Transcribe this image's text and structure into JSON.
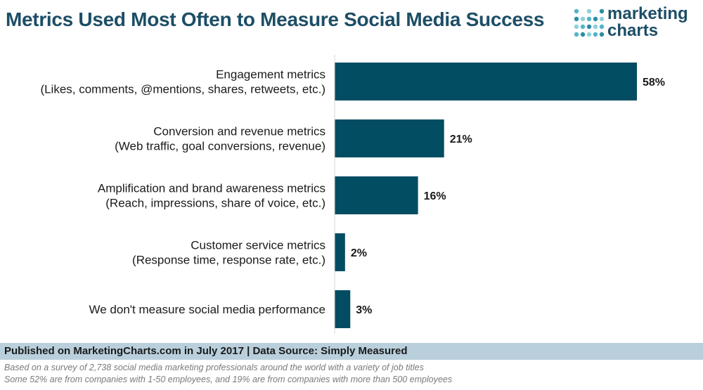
{
  "header": {
    "title": "Metrics Used Most Often to Measure Social Media Success",
    "logo_line1": "marketing",
    "logo_line2": "charts"
  },
  "colors": {
    "bar": "#034d63",
    "title": "#1d4e66",
    "footer_bg": "#b9cfdc",
    "logo_dots": [
      "#52b5c7",
      "#2b8ca5",
      "#8fd0dc"
    ]
  },
  "chart_data": {
    "type": "bar",
    "orientation": "horizontal",
    "title": "Metrics Used Most Often to Measure Social Media Success",
    "xlabel": "",
    "ylabel": "",
    "xlim": [
      0,
      58
    ],
    "grid": false,
    "value_suffix": "%",
    "categories": [
      [
        "Engagement metrics",
        "(Likes, comments, @mentions, shares, retweets, etc.)"
      ],
      [
        "Conversion and revenue metrics",
        "(Web traffic, goal conversions, revenue)"
      ],
      [
        "Amplification and brand awareness metrics",
        "(Reach, impressions, share of voice, etc.)"
      ],
      [
        "Customer service metrics",
        "(Response time, response rate, etc.)"
      ],
      [
        "We don't measure social media performance"
      ]
    ],
    "values": [
      58,
      21,
      16,
      2,
      3
    ],
    "data_labels": [
      "58%",
      "21%",
      "16%",
      "2%",
      "3%"
    ]
  },
  "footer": {
    "published": "Published on MarketingCharts.com in July 2017 | Data Source: Simply Measured",
    "note1": "Based on a survey of 2,738 social media marketing professionals around the world with a variety of job titles",
    "note2": "Some 52% are from companies with 1-50 employees, and 19% are from companies with more than 500 employees"
  }
}
